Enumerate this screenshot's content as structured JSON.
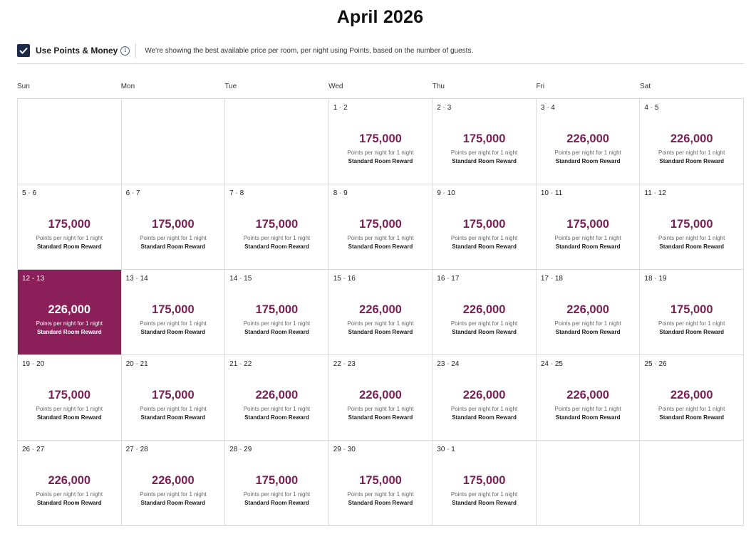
{
  "title": "April 2026",
  "options": {
    "checkbox_label": "Use Points & Money",
    "checked": true,
    "info_glyph": "i",
    "note": "We're showing the best available price per room, per night using Points, based on the number of guests."
  },
  "weekdays": [
    "Sun",
    "Mon",
    "Tue",
    "Wed",
    "Thu",
    "Fri",
    "Sat"
  ],
  "colors": {
    "accent": "#7a1f55",
    "selected_bg": "#8a1f5a",
    "checkbox": "#1c2a4a"
  },
  "price_subtitle": "Points per night for 1 night",
  "reward_label": "Standard Room Reward",
  "cells": [
    null,
    null,
    null,
    {
      "start": "1",
      "end": "2",
      "price": "175,000"
    },
    {
      "start": "2",
      "end": "3",
      "price": "175,000"
    },
    {
      "start": "3",
      "end": "4",
      "price": "226,000"
    },
    {
      "start": "4",
      "end": "5",
      "price": "226,000"
    },
    {
      "start": "5",
      "end": "6",
      "price": "175,000"
    },
    {
      "start": "6",
      "end": "7",
      "price": "175,000"
    },
    {
      "start": "7",
      "end": "8",
      "price": "175,000"
    },
    {
      "start": "8",
      "end": "9",
      "price": "175,000"
    },
    {
      "start": "9",
      "end": "10",
      "price": "175,000"
    },
    {
      "start": "10",
      "end": "11",
      "price": "175,000"
    },
    {
      "start": "11",
      "end": "12",
      "price": "175,000"
    },
    {
      "start": "12",
      "end": "13",
      "price": "226,000",
      "selected": true
    },
    {
      "start": "13",
      "end": "14",
      "price": "175,000"
    },
    {
      "start": "14",
      "end": "15",
      "price": "175,000"
    },
    {
      "start": "15",
      "end": "16",
      "price": "226,000"
    },
    {
      "start": "16",
      "end": "17",
      "price": "226,000"
    },
    {
      "start": "17",
      "end": "18",
      "price": "226,000"
    },
    {
      "start": "18",
      "end": "19",
      "price": "175,000"
    },
    {
      "start": "19",
      "end": "20",
      "price": "175,000"
    },
    {
      "start": "20",
      "end": "21",
      "price": "175,000"
    },
    {
      "start": "21",
      "end": "22",
      "price": "226,000"
    },
    {
      "start": "22",
      "end": "23",
      "price": "226,000"
    },
    {
      "start": "23",
      "end": "24",
      "price": "226,000"
    },
    {
      "start": "24",
      "end": "25",
      "price": "226,000"
    },
    {
      "start": "25",
      "end": "26",
      "price": "226,000"
    },
    {
      "start": "26",
      "end": "27",
      "price": "226,000"
    },
    {
      "start": "27",
      "end": "28",
      "price": "226,000"
    },
    {
      "start": "28",
      "end": "29",
      "price": "175,000"
    },
    {
      "start": "29",
      "end": "30",
      "price": "175,000"
    },
    {
      "start": "30",
      "end": "1",
      "price": "175,000"
    },
    null,
    null
  ]
}
